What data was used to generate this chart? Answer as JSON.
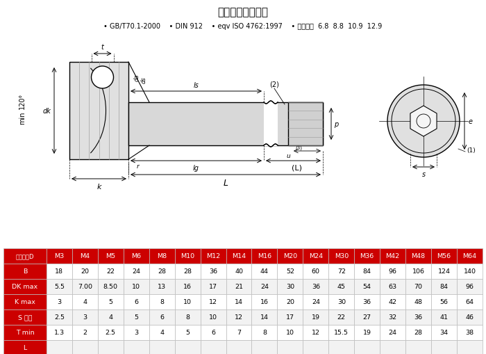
{
  "title": "内六角圆柱头螺钉",
  "subtitle": "• GB/T70.1-2000    • DIN 912    • eqv ISO 4762:1997    • 机械性能  6.8  8.8  10.9  12.9",
  "table_headers": [
    "螺纹规格D",
    "M3",
    "M4",
    "M5",
    "M6",
    "M8",
    "M10",
    "M12",
    "M14",
    "M16",
    "M20",
    "M24",
    "M30",
    "M36",
    "M42",
    "M48",
    "M56",
    "M64"
  ],
  "table_rows": [
    [
      "B",
      "18",
      "20",
      "22",
      "24",
      "28",
      "28",
      "36",
      "40",
      "44",
      "52",
      "60",
      "72",
      "84",
      "96",
      "106",
      "124",
      "140"
    ],
    [
      "DK max",
      "5.5",
      "7.00",
      "8.50",
      "10",
      "13",
      "16",
      "17",
      "21",
      "24",
      "30",
      "36",
      "45",
      "54",
      "63",
      "70",
      "84",
      "96"
    ],
    [
      "K max",
      "3",
      "4",
      "5",
      "6",
      "8",
      "10",
      "12",
      "14",
      "16",
      "20",
      "24",
      "30",
      "36",
      "42",
      "48",
      "56",
      "64"
    ],
    [
      "S 公称",
      "2.5",
      "3",
      "4",
      "5",
      "6",
      "8",
      "10",
      "12",
      "14",
      "17",
      "19",
      "22",
      "27",
      "32",
      "36",
      "41",
      "46"
    ],
    [
      "T min",
      "1.3",
      "2",
      "2.5",
      "3",
      "4",
      "5",
      "6",
      "7",
      "8",
      "10",
      "12",
      "15.5",
      "19",
      "24",
      "28",
      "34",
      "38"
    ],
    [
      "L",
      "",
      "",
      "",
      "",
      "",
      "",
      "",
      "",
      "",
      "",
      "",
      "",
      "",
      "",
      "",
      "",
      ""
    ]
  ],
  "header_bg": "#CC0000",
  "header_fg": "#FFFFFF",
  "row_bg_alt": "#F2F2F2",
  "row_bg_norm": "#FFFFFF",
  "bg_color": "#FFFFFF"
}
